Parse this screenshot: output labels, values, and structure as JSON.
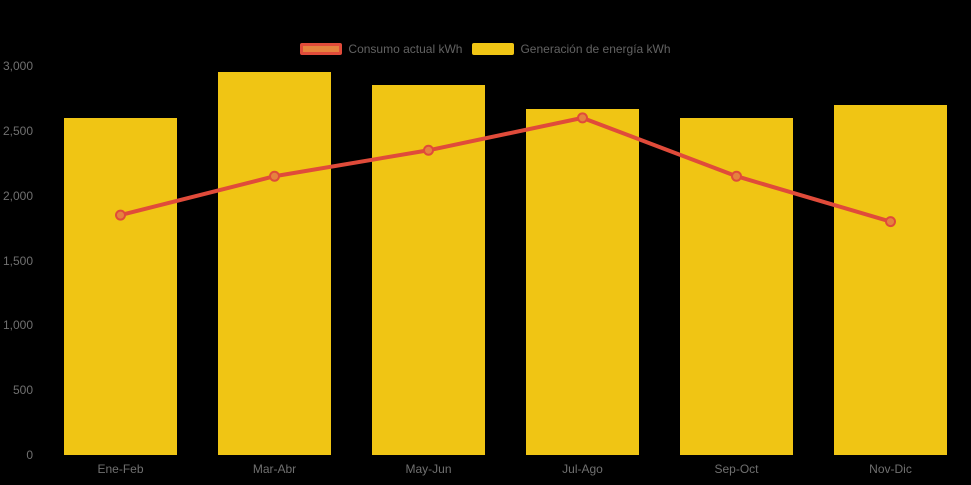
{
  "colors": {
    "background": "#000000",
    "bar_yellow": "#F0C514",
    "line_red": "#E04B3A",
    "marker_orange": "#E5823E",
    "axis_label_gray": "#707070",
    "legend_label_gray": "#626262"
  },
  "legend": {
    "items": [
      {
        "label": "Consumo actual kWh"
      },
      {
        "label": "Generación de energía kWh"
      }
    ]
  },
  "chart_data": {
    "type": "bar",
    "subtype": "bar-and-line-combo",
    "categories": [
      "Ene-Feb",
      "Mar-Abr",
      "May-Jun",
      "Jul-Ago",
      "Sep-Oct",
      "Nov-Dic"
    ],
    "series": [
      {
        "name": "Consumo actual kWh",
        "type": "line",
        "values": [
          1850,
          2150,
          2350,
          2600,
          2150,
          1800
        ]
      },
      {
        "name": "Generación de energía kWh",
        "type": "bar",
        "values": [
          2600,
          2950,
          2850,
          2670,
          2600,
          2700
        ]
      }
    ],
    "title": "",
    "xlabel": "",
    "ylabel": "",
    "ylim": [
      0,
      3000
    ],
    "yticks": [
      {
        "value": 0,
        "label": "0"
      },
      {
        "value": 500,
        "label": "500"
      },
      {
        "value": 1000,
        "label": "1,000"
      },
      {
        "value": 1500,
        "label": "1,500"
      },
      {
        "value": 2000,
        "label": "2,000"
      },
      {
        "value": 2500,
        "label": "2,500"
      },
      {
        "value": 3000,
        "label": "3,000"
      }
    ],
    "grid": "off",
    "legend_position": "top-center",
    "background": "black"
  }
}
